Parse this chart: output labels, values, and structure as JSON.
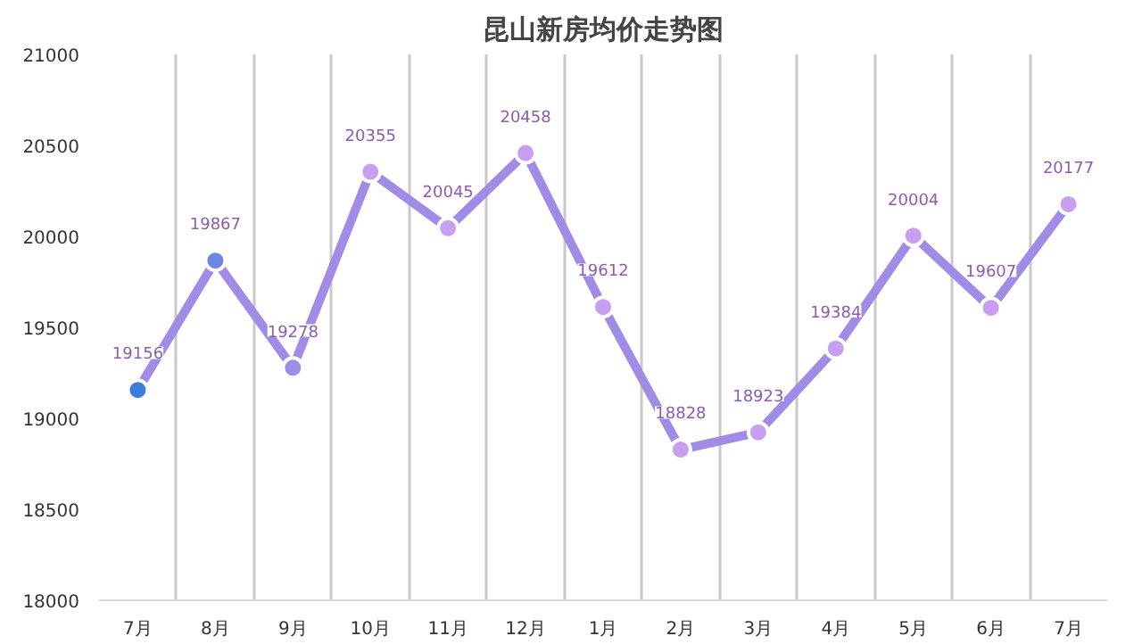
{
  "chart_data": {
    "type": "line",
    "title": "昆山新房均价走势图",
    "categories": [
      "7月",
      "8月",
      "9月",
      "10月",
      "11月",
      "12月",
      "1月",
      "2月",
      "3月",
      "4月",
      "5月",
      "6月",
      "7月"
    ],
    "series": [
      {
        "color": "#a08ce6",
        "values": [
          19156,
          19867,
          19278,
          20355,
          20045,
          20458,
          19612,
          18828,
          18923,
          19384,
          20004,
          19607,
          20177
        ],
        "colors": [
          "#3b7ddc",
          "#6c87e2",
          "#9a8fe2",
          "#c89ff0",
          "#c89ff0",
          "#c89ff0",
          "#c89ff0",
          "#c89ff0",
          "#c89ff0",
          "#c89ff0",
          "#c89ff0",
          "#c89ff0",
          "#c89ff0"
        ]
      }
    ],
    "ylim": [
      18000,
      21000
    ],
    "yticks": [
      18000,
      18500,
      19000,
      19500,
      20000,
      20500,
      21000
    ],
    "grid": "x",
    "marker": "circle",
    "line_style": "solid",
    "data_labels": true
  }
}
